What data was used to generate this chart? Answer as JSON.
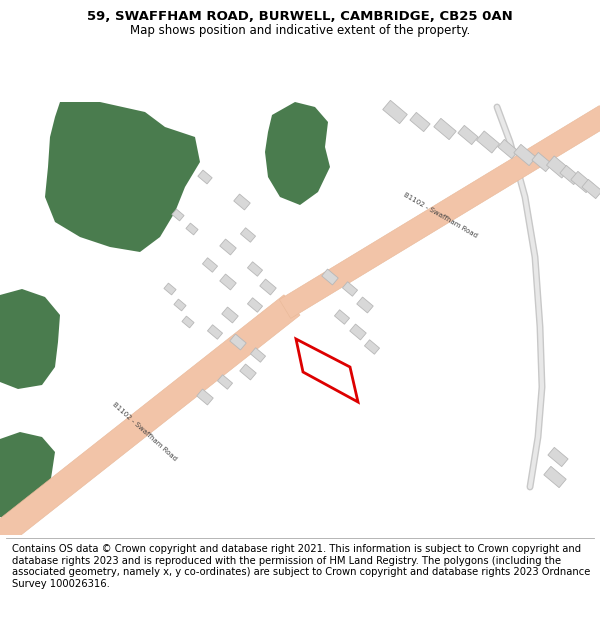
{
  "title": "59, SWAFFHAM ROAD, BURWELL, CAMBRIDGE, CB25 0AN",
  "subtitle": "Map shows position and indicative extent of the property.",
  "footer": "Contains OS data © Crown copyright and database right 2021. This information is subject to Crown copyright and database rights 2023 and is reproduced with the permission of HM Land Registry. The polygons (including the associated geometry, namely x, y co-ordinates) are subject to Crown copyright and database rights 2023 Ordnance Survey 100026316.",
  "bg_color": "#ffffff",
  "road_color": "#f2c4a8",
  "road_edge_color": "#e8b898",
  "green_color": "#4a7c4e",
  "building_color": "#d8d8d8",
  "building_edge": "#b8b8b8",
  "highlight_color": "#dd0000",
  "road_label": "B1102 - Swaffham Road",
  "title_fontsize": 9.5,
  "subtitle_fontsize": 8.5,
  "footer_fontsize": 7.2
}
